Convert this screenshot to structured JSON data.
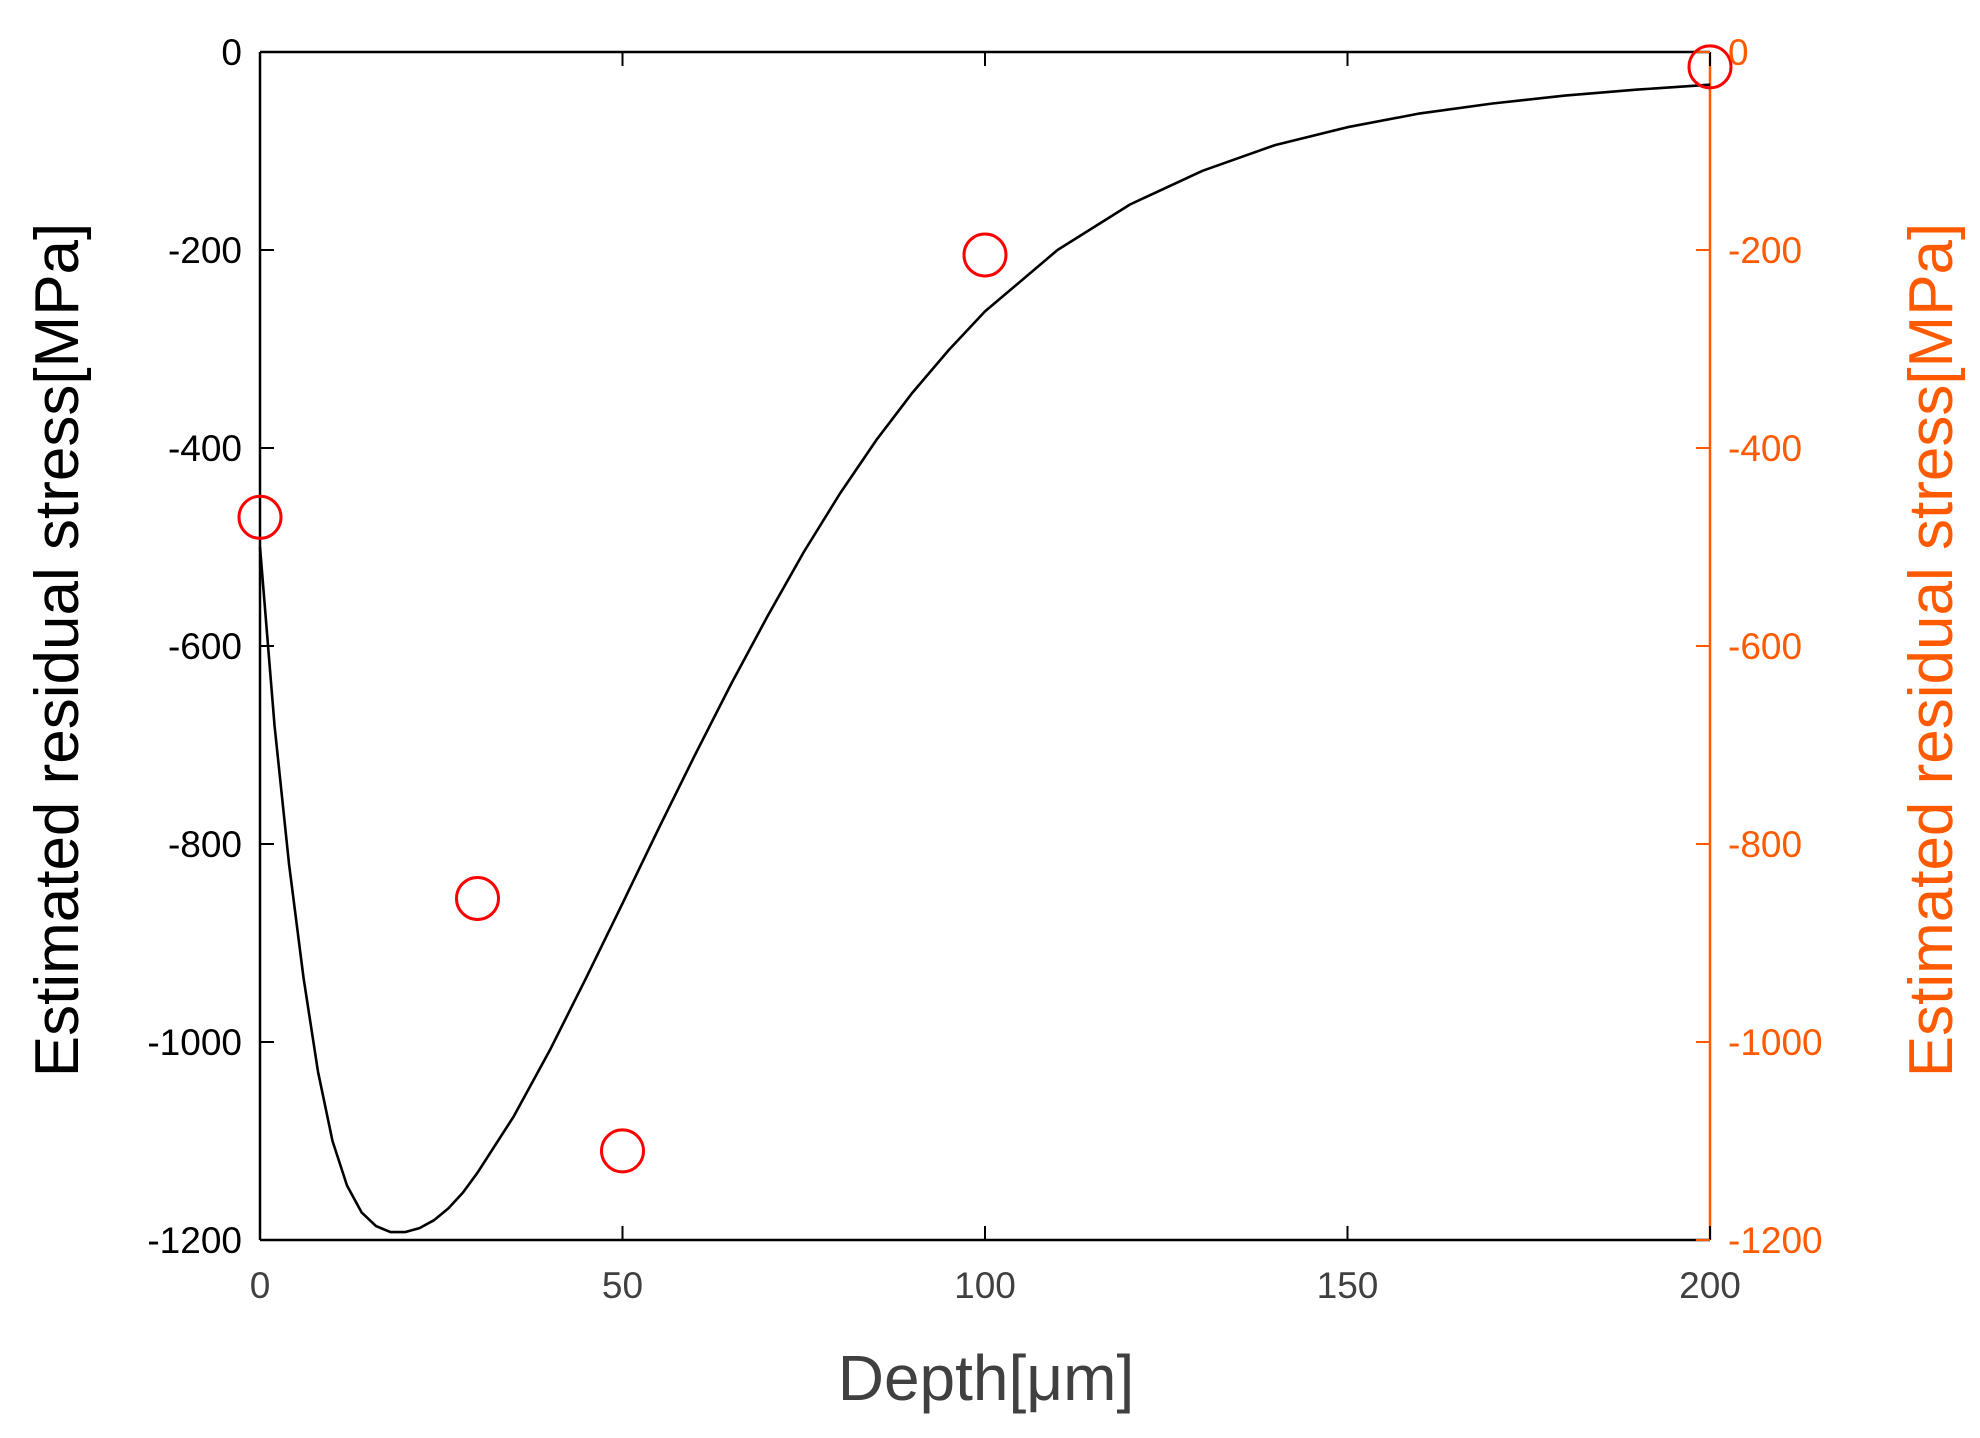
{
  "chart_data": {
    "type": "scatter",
    "xlabel": "Depth[μm]",
    "ylabel_left": "Estimated residual stress[MPa]",
    "ylabel_right": "Estimated residual stress[MPa]",
    "xlim": [
      0,
      200
    ],
    "ylim": [
      -1200,
      0
    ],
    "x_ticks": [
      0,
      50,
      100,
      150,
      200
    ],
    "x_tick_labels": [
      "0",
      "50",
      "100",
      "150",
      "200"
    ],
    "y_ticks": [
      0,
      -200,
      -400,
      -600,
      -800,
      -1000,
      -1200
    ],
    "y_tick_labels": [
      "0",
      "-200",
      "-400",
      "-600",
      "-800",
      "-1000",
      "-1200"
    ],
    "grid": false,
    "colors": {
      "curve": "#000000",
      "points": "#ff0000",
      "left_axis": "#000000",
      "right_axis": "#ff5a00",
      "x_axis_labels": "#404040"
    },
    "series": [
      {
        "type": "line",
        "x": [
          0,
          2,
          4,
          6,
          8,
          10,
          12,
          14,
          16,
          18,
          20,
          22,
          24,
          26,
          28,
          30,
          35,
          40,
          45,
          50,
          55,
          60,
          65,
          70,
          75,
          80,
          85,
          90,
          95,
          100,
          110,
          120,
          130,
          140,
          150,
          160,
          170,
          180,
          190,
          200
        ],
        "values": [
          -500,
          -680,
          -820,
          -935,
          -1030,
          -1100,
          -1145,
          -1172,
          -1186,
          -1192,
          -1192,
          -1188,
          -1180,
          -1168,
          -1152,
          -1132,
          -1075,
          -1008,
          -935,
          -860,
          -784,
          -710,
          -638,
          -570,
          -505,
          -446,
          -392,
          -344,
          -301,
          -262,
          -200,
          -154,
          -120,
          -94,
          -76,
          -62,
          -52,
          -44,
          -38,
          -33
        ]
      },
      {
        "type": "scatter",
        "x": [
          0,
          30,
          50,
          100,
          200
        ],
        "values": [
          -470,
          -855,
          -1110,
          -205,
          -15
        ]
      }
    ]
  }
}
